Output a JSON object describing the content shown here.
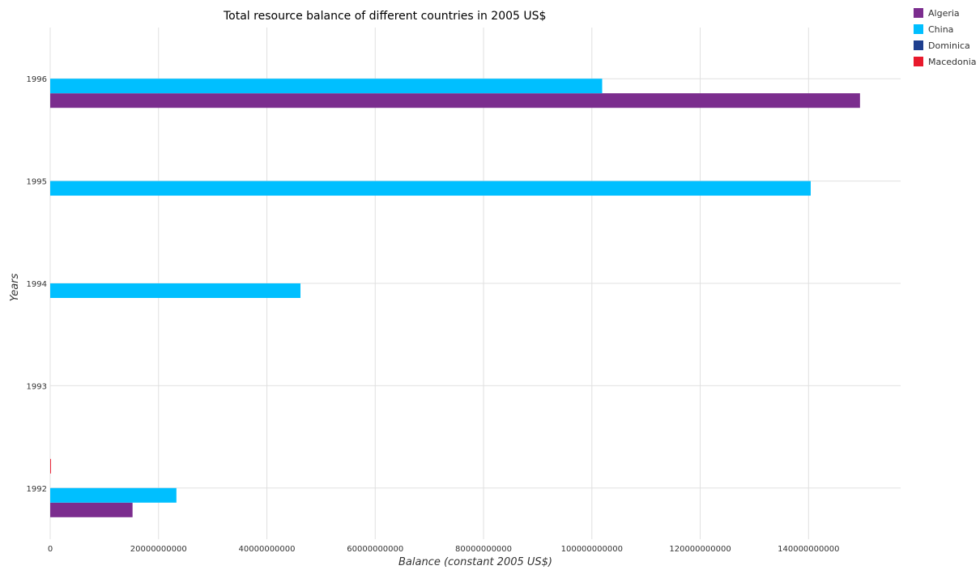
{
  "chart_data": {
    "type": "bar",
    "orientation": "horizontal",
    "title": "Total resource balance of different countries in 2005 US$",
    "xlabel": "Balance (constant 2005 US$)",
    "ylabel": "Years",
    "categories": [
      "1992",
      "1993",
      "1994",
      "1995",
      "1996"
    ],
    "xlim": [
      0,
      157000000000
    ],
    "xticks": [
      0,
      20000000000,
      40000000000,
      60000000000,
      80000000000,
      100000000000,
      120000000000,
      140000000000
    ],
    "xtick_labels": [
      "0",
      "20000000000",
      "40000000000",
      "60000000000",
      "80000000000",
      "100000000000",
      "120000000000",
      "140000000000"
    ],
    "grid": true,
    "legend_position": "top-right",
    "series": [
      {
        "name": "Algeria",
        "color": "#7b2d8e",
        "values": [
          15200000000,
          0,
          0,
          0,
          149500000000
        ]
      },
      {
        "name": "China",
        "color": "#00bfff",
        "values": [
          23300000000,
          0,
          46200000000,
          140400000000,
          101900000000
        ]
      },
      {
        "name": "Dominica",
        "color": "#1e3f8f",
        "values": [
          0,
          0,
          0,
          0,
          0
        ]
      },
      {
        "name": "Macedonia",
        "color": "#e8192c",
        "values": [
          140000000,
          0,
          0,
          0,
          0
        ]
      }
    ]
  }
}
